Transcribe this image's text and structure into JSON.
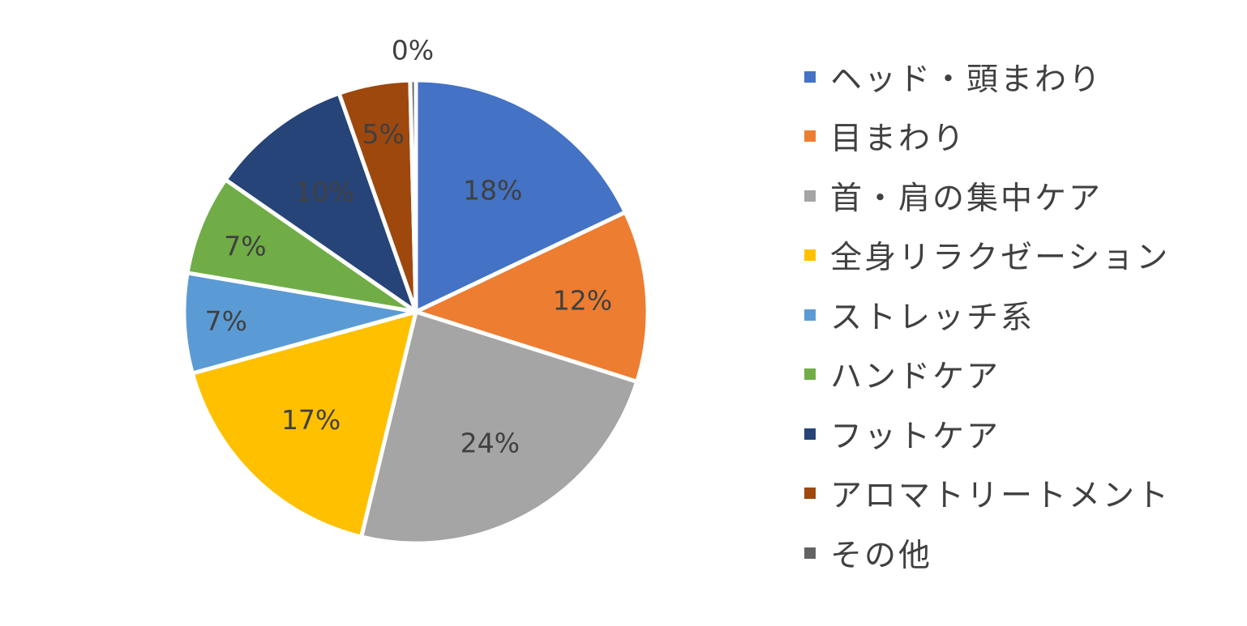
{
  "chart_data": {
    "type": "pie",
    "title": "",
    "slices": [
      {
        "label": "ヘッド・頭まわり",
        "value": 18,
        "data_label": "18%",
        "color": "#4472C4"
      },
      {
        "label": "目まわり",
        "value": 12,
        "data_label": "12%",
        "color": "#ED7D31"
      },
      {
        "label": "首・肩の集中ケア",
        "value": 24,
        "data_label": "24%",
        "color": "#A5A5A5"
      },
      {
        "label": "全身リラクゼーション",
        "value": 17,
        "data_label": "17%",
        "color": "#FFC000"
      },
      {
        "label": "ストレッチ系",
        "value": 7,
        "data_label": "7%",
        "color": "#5B9BD5"
      },
      {
        "label": "ハンドケア",
        "value": 7,
        "data_label": "7%",
        "color": "#70AD47"
      },
      {
        "label": "フットケア",
        "value": 10,
        "data_label": "10%",
        "color": "#264478"
      },
      {
        "label": "アロマトリートメント",
        "value": 5,
        "data_label": "5%",
        "color": "#9E480E"
      },
      {
        "label": "その他",
        "value": 0.4,
        "data_label": "0%",
        "color": "#636363"
      }
    ],
    "legend_position": "right",
    "data_label_color": "#404040"
  }
}
